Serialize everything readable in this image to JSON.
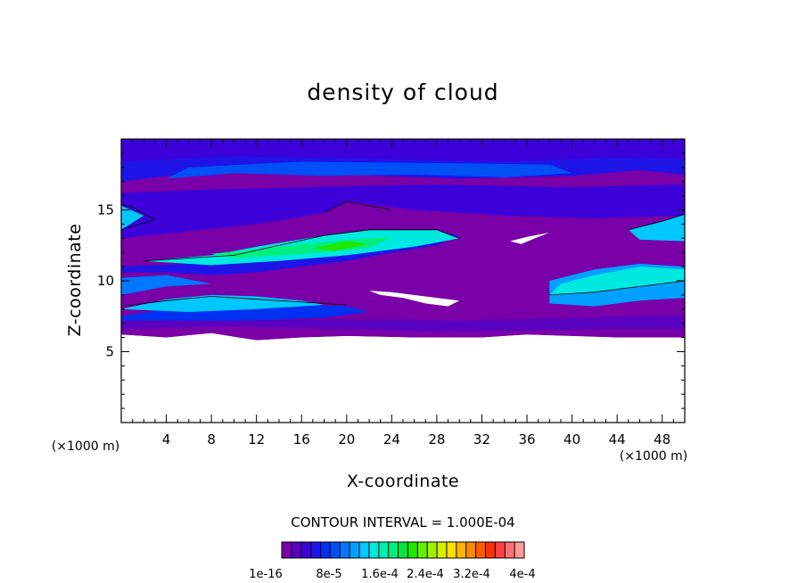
{
  "chart_data": {
    "type": "heatmap",
    "title": "density of cloud",
    "xlabel": "X-coordinate",
    "ylabel": "Z-coordinate",
    "x_unit": "(×1000 m)",
    "y_unit": "(×1000 m)",
    "xlim": [
      0,
      50
    ],
    "ylim": [
      0,
      20
    ],
    "x_ticks": [
      "4",
      "8",
      "12",
      "16",
      "20",
      "24",
      "28",
      "32",
      "36",
      "40",
      "44",
      "48"
    ],
    "y_ticks": [
      "5",
      "10",
      "15"
    ],
    "contour_interval_label": "CONTOUR INTERVAL = 1.000E-04",
    "colorbar": {
      "range": [
        1e-16,
        0.0004
      ],
      "tick_labels": [
        "1e-16",
        "8e-5",
        "1.6e-4",
        "2.4e-4",
        "3.2e-4",
        "4e-4"
      ],
      "colors": [
        "#7a00a8",
        "#5a00c0",
        "#3c00d8",
        "#1e14e8",
        "#0030f0",
        "#0050f8",
        "#0078ff",
        "#00a0ff",
        "#00c8ff",
        "#00e8e0",
        "#00f0b0",
        "#00f080",
        "#00e840",
        "#20e800",
        "#60f000",
        "#a0f000",
        "#d8f000",
        "#ffe000",
        "#ffb400",
        "#ff8800",
        "#ff5a00",
        "#ff3000",
        "#ff4040",
        "#ff7070",
        "#ff9a9a"
      ]
    },
    "field_levels": {
      "comment_bands": "",
      "bands": [
        {
          "z": [
            6,
            7.5
          ],
          "level": 1
        },
        {
          "z": [
            7.5,
            9
          ],
          "level": 8
        },
        {
          "z": [
            9,
            11
          ],
          "level": 3
        },
        {
          "z": [
            11,
            13
          ],
          "level": 10
        },
        {
          "z": [
            13,
            15
          ],
          "level": 2
        },
        {
          "z": [
            15,
            17
          ],
          "level": 0
        },
        {
          "z": [
            17,
            19
          ],
          "level": 4
        },
        {
          "z": [
            19,
            20
          ],
          "level": 3
        }
      ]
    }
  }
}
